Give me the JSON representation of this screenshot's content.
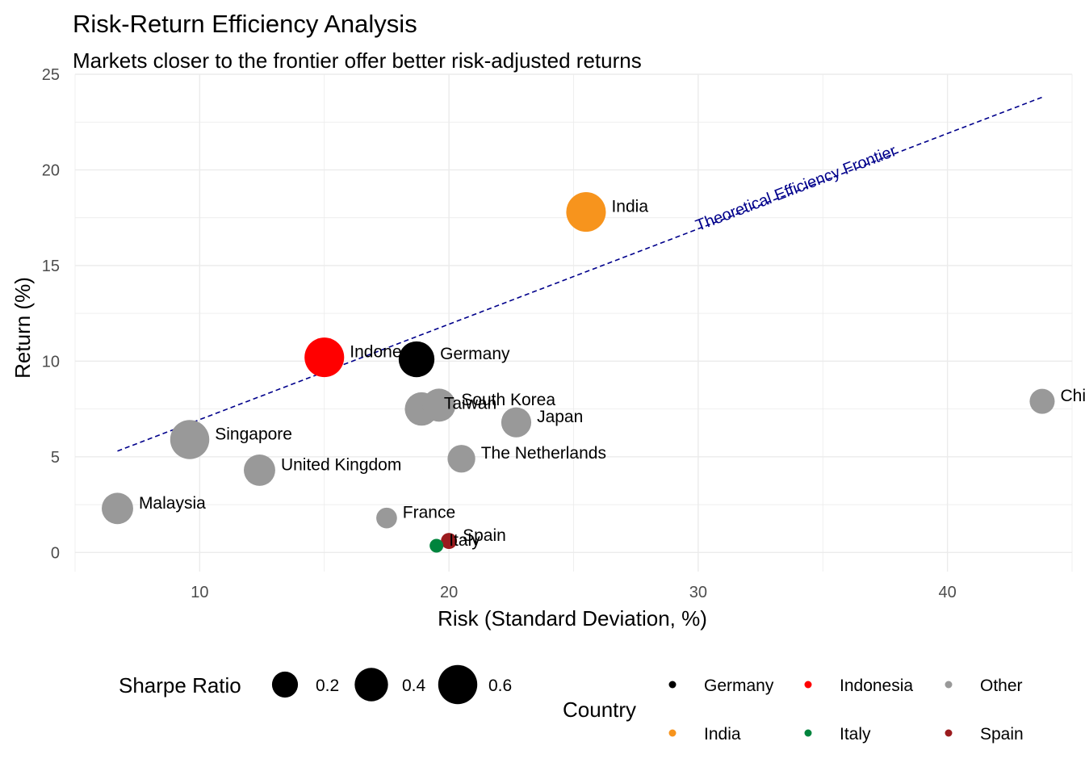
{
  "title": "Risk-Return Efficiency Analysis",
  "subtitle": "Markets closer to the frontier offer better risk-adjusted returns",
  "chart_data": {
    "type": "scatter",
    "xlabel": "Risk (Standard Deviation, %)",
    "ylabel": "Return (%)",
    "xlim": [
      5,
      45
    ],
    "ylim": [
      -1,
      25
    ],
    "x_ticks": [
      10,
      20,
      30,
      40
    ],
    "y_ticks": [
      0,
      5,
      10,
      15,
      20,
      25
    ],
    "grid": true,
    "points": [
      {
        "label": "India",
        "x": 25.5,
        "y": 17.8,
        "sharpe": 0.62,
        "group": "India"
      },
      {
        "label": "Indonesia",
        "x": 15.0,
        "y": 10.2,
        "sharpe": 0.62,
        "group": "Indonesia"
      },
      {
        "label": "Germany",
        "x": 18.7,
        "y": 10.1,
        "sharpe": 0.48,
        "group": "Germany"
      },
      {
        "label": "South Korea",
        "x": 19.6,
        "y": 7.7,
        "sharpe": 0.39,
        "group": "Other"
      },
      {
        "label": "Taiwan",
        "x": 18.9,
        "y": 7.5,
        "sharpe": 0.4,
        "group": "Other"
      },
      {
        "label": "Japan",
        "x": 22.7,
        "y": 6.8,
        "sharpe": 0.3,
        "group": "Other"
      },
      {
        "label": "China",
        "x": 43.8,
        "y": 7.9,
        "sharpe": 0.18,
        "group": "Other"
      },
      {
        "label": "Singapore",
        "x": 9.6,
        "y": 5.9,
        "sharpe": 0.6,
        "group": "Other"
      },
      {
        "label": "The Netherlands",
        "x": 20.5,
        "y": 4.9,
        "sharpe": 0.24,
        "group": "Other"
      },
      {
        "label": "United Kingdom",
        "x": 12.4,
        "y": 4.3,
        "sharpe": 0.34,
        "group": "Other"
      },
      {
        "label": "Malaysia",
        "x": 6.7,
        "y": 2.3,
        "sharpe": 0.34,
        "group": "Other"
      },
      {
        "label": "France",
        "x": 17.5,
        "y": 1.8,
        "sharpe": 0.1,
        "group": "Other"
      },
      {
        "label": "Spain",
        "x": 20.0,
        "y": 0.6,
        "sharpe": 0.04,
        "group": "Spain"
      },
      {
        "label": "Italy",
        "x": 19.5,
        "y": 0.35,
        "sharpe": 0.02,
        "group": "Italy"
      }
    ],
    "frontier": {
      "label": "Theoretical Efficiency Frontier",
      "x": [
        6.7,
        43.8
      ],
      "y": [
        5.3,
        23.8
      ],
      "color": "#00008B",
      "style": "dashed"
    },
    "colors": {
      "Germany": "#000000",
      "Indonesia": "#FF0000",
      "Other": "#999999",
      "India": "#F7941D",
      "Italy": "#00843D",
      "Spain": "#9B1B1E"
    },
    "legend_size": {
      "title": "Sharpe Ratio",
      "values": [
        0.2,
        0.4,
        0.6
      ],
      "labels": [
        "0.2",
        "0.4",
        "0.6"
      ]
    },
    "legend_color": {
      "title": "Country",
      "items": [
        "Germany",
        "Indonesia",
        "Other",
        "India",
        "Italy",
        "Spain"
      ]
    },
    "legend_position": "bottom"
  }
}
